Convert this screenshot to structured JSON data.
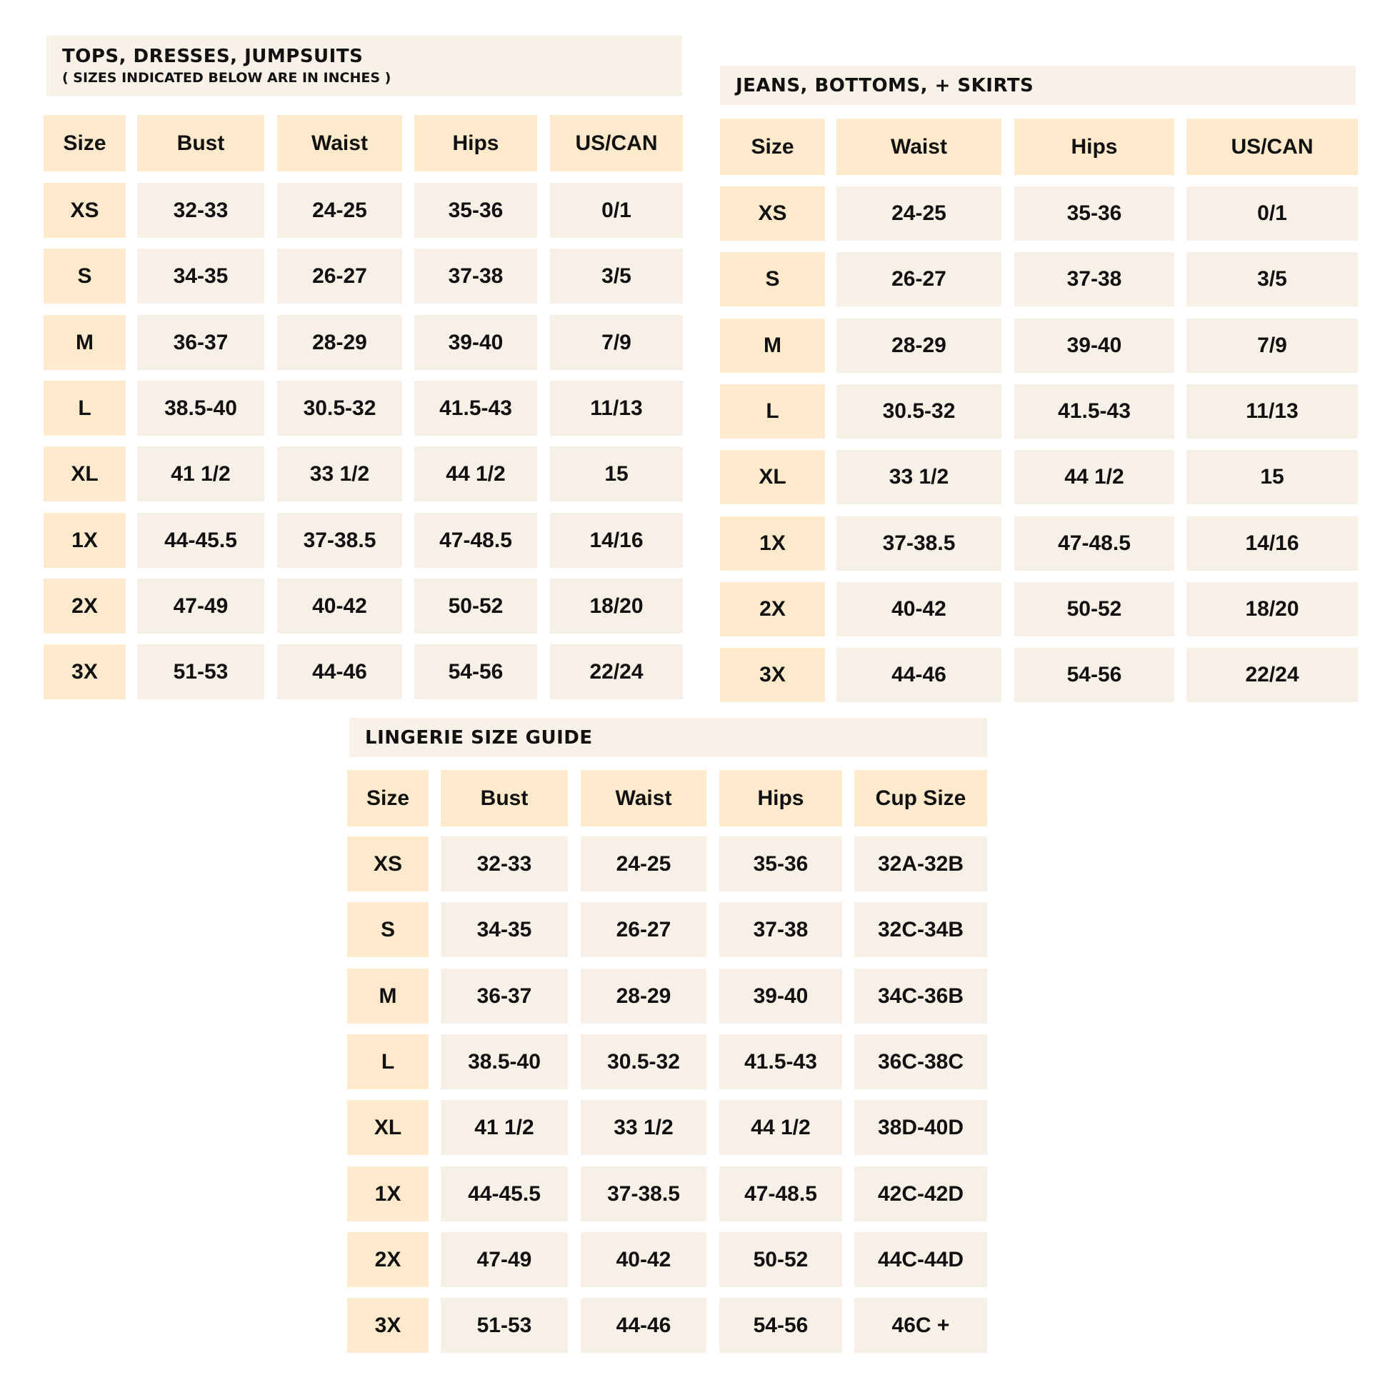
{
  "colors": {
    "header": "#fde9cc",
    "cell": "#f7f0e6",
    "title_bg": "#f8f1e7"
  },
  "tables": [
    {
      "title": "TOPS, DRESSES, JUMPSUITS",
      "subtitle": "( SIZES INDICATED BELOW ARE IN INCHES )",
      "headers": [
        "Size",
        "Bust",
        "Waist",
        "Hips",
        "US/CAN"
      ],
      "rows": [
        [
          "XS",
          "32-33",
          "24-25",
          "35-36",
          "0/1"
        ],
        [
          "S",
          "34-35",
          "26-27",
          "37-38",
          "3/5"
        ],
        [
          "M",
          "36-37",
          "28-29",
          "39-40",
          "7/9"
        ],
        [
          "L",
          "38.5-40",
          "30.5-32",
          "41.5-43",
          "11/13"
        ],
        [
          "XL",
          "41 1/2",
          "33 1/2",
          "44 1/2",
          "15"
        ],
        [
          "1X",
          "44-45.5",
          "37-38.5",
          "47-48.5",
          "14/16"
        ],
        [
          "2X",
          "47-49",
          "40-42",
          "50-52",
          "18/20"
        ],
        [
          "3X",
          "51-53",
          "44-46",
          "54-56",
          "22/24"
        ]
      ]
    },
    {
      "title": "JEANS, BOTTOMS, + SKIRTS",
      "headers": [
        "Size",
        "Waist",
        "Hips",
        "US/CAN"
      ],
      "rows": [
        [
          "XS",
          "24-25",
          "35-36",
          "0/1"
        ],
        [
          "S",
          "26-27",
          "37-38",
          "3/5"
        ],
        [
          "M",
          "28-29",
          "39-40",
          "7/9"
        ],
        [
          "L",
          "30.5-32",
          "41.5-43",
          "11/13"
        ],
        [
          "XL",
          "33 1/2",
          "44 1/2",
          "15"
        ],
        [
          "1X",
          "37-38.5",
          "47-48.5",
          "14/16"
        ],
        [
          "2X",
          "40-42",
          "50-52",
          "18/20"
        ],
        [
          "3X",
          "44-46",
          "54-56",
          "22/24"
        ]
      ]
    },
    {
      "title": "LINGERIE SIZE GUIDE",
      "headers": [
        "Size",
        "Bust",
        "Waist",
        "Hips",
        "Cup Size"
      ],
      "rows": [
        [
          "XS",
          "32-33",
          "24-25",
          "35-36",
          "32A-32B"
        ],
        [
          "S",
          "34-35",
          "26-27",
          "37-38",
          "32C-34B"
        ],
        [
          "M",
          "36-37",
          "28-29",
          "39-40",
          "34C-36B"
        ],
        [
          "L",
          "38.5-40",
          "30.5-32",
          "41.5-43",
          "36C-38C"
        ],
        [
          "XL",
          "41 1/2",
          "33 1/2",
          "44 1/2",
          "38D-40D"
        ],
        [
          "1X",
          "44-45.5",
          "37-38.5",
          "47-48.5",
          "42C-42D"
        ],
        [
          "2X",
          "47-49",
          "40-42",
          "50-52",
          "44C-44D"
        ],
        [
          "3X",
          "51-53",
          "44-46",
          "54-56",
          "46C +"
        ]
      ]
    }
  ]
}
